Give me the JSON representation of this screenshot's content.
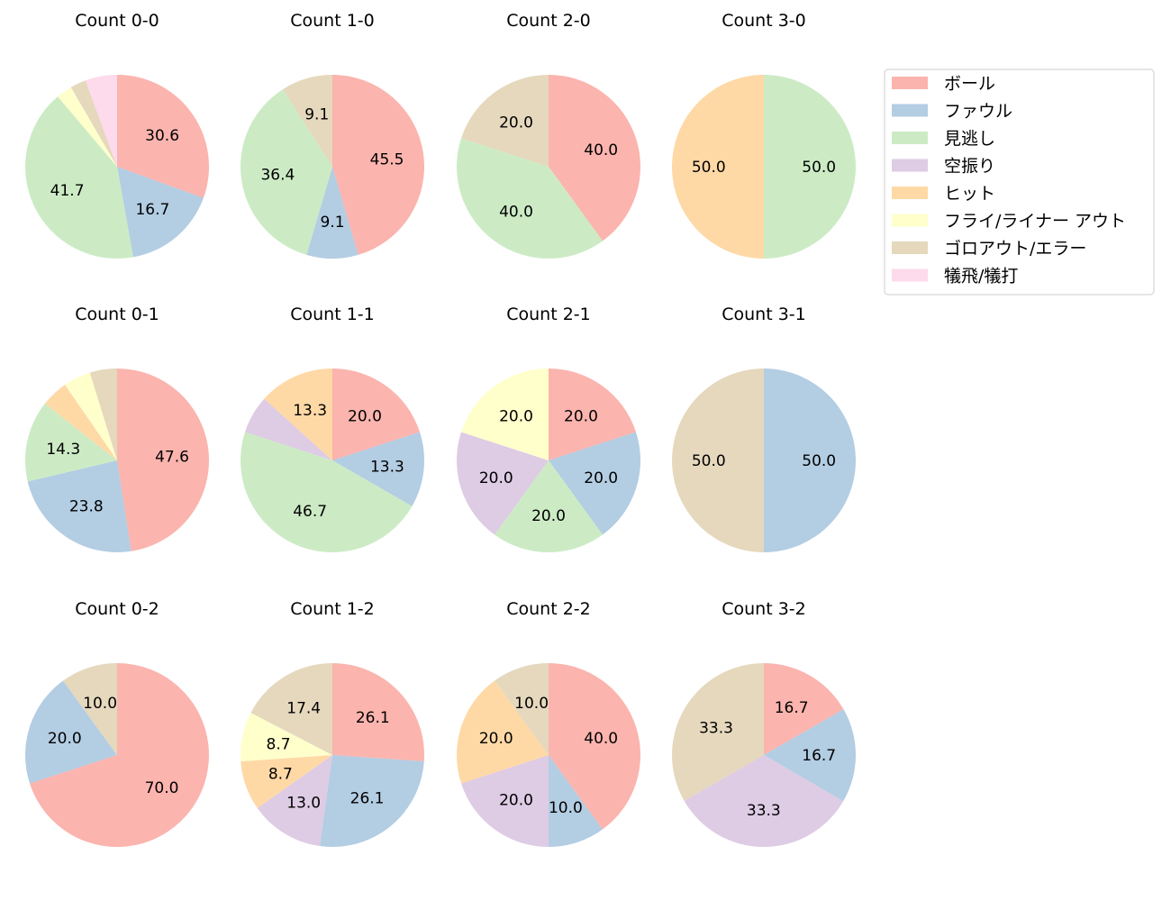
{
  "chart_data": {
    "type": "pie",
    "categories": [
      "ボール",
      "ファウル",
      "見逃し",
      "空振り",
      "ヒット",
      "フライ/ライナー アウト",
      "ゴロアウト/エラー",
      "犠飛/犠打"
    ],
    "colors": [
      "#fbb4ae",
      "#b3cde3",
      "#ccebc5",
      "#decbe4",
      "#fed9a6",
      "#ffffcc",
      "#e5d8bd",
      "#fddaec"
    ],
    "legend_position": "right",
    "start_angle_deg": 90,
    "direction": "clockwise",
    "pies": [
      {
        "title": "Count 0-0",
        "values": [
          30.6,
          16.7,
          41.7,
          0,
          0,
          2.8,
          2.8,
          5.6
        ]
      },
      {
        "title": "Count 1-0",
        "values": [
          45.5,
          9.1,
          36.4,
          0,
          0,
          0,
          9.1,
          0
        ]
      },
      {
        "title": "Count 2-0",
        "values": [
          40.0,
          0,
          40.0,
          0,
          0,
          0,
          20.0,
          0
        ]
      },
      {
        "title": "Count 3-0",
        "values": [
          0,
          0,
          50.0,
          0,
          50.0,
          0,
          0,
          0
        ]
      },
      {
        "title": "Count 0-1",
        "values": [
          47.6,
          23.8,
          14.3,
          0,
          4.8,
          4.8,
          4.8,
          0
        ]
      },
      {
        "title": "Count 1-1",
        "values": [
          20.0,
          13.3,
          46.7,
          6.7,
          13.3,
          0,
          0,
          0
        ]
      },
      {
        "title": "Count 2-1",
        "values": [
          20.0,
          20.0,
          20.0,
          20.0,
          0,
          20.0,
          0,
          0
        ]
      },
      {
        "title": "Count 3-1",
        "values": [
          0,
          50.0,
          0,
          0,
          0,
          0,
          50.0,
          0
        ]
      },
      {
        "title": "Count 0-2",
        "values": [
          70.0,
          20.0,
          0,
          0,
          0,
          0,
          10.0,
          0
        ]
      },
      {
        "title": "Count 1-2",
        "values": [
          26.1,
          26.1,
          0,
          13.0,
          8.7,
          8.7,
          17.4,
          0
        ]
      },
      {
        "title": "Count 2-2",
        "values": [
          40.0,
          10.0,
          0,
          20.0,
          20.0,
          0,
          10.0,
          0
        ]
      },
      {
        "title": "Count 3-2",
        "values": [
          16.7,
          16.7,
          0,
          33.3,
          0,
          0,
          33.3,
          0
        ]
      }
    ]
  }
}
